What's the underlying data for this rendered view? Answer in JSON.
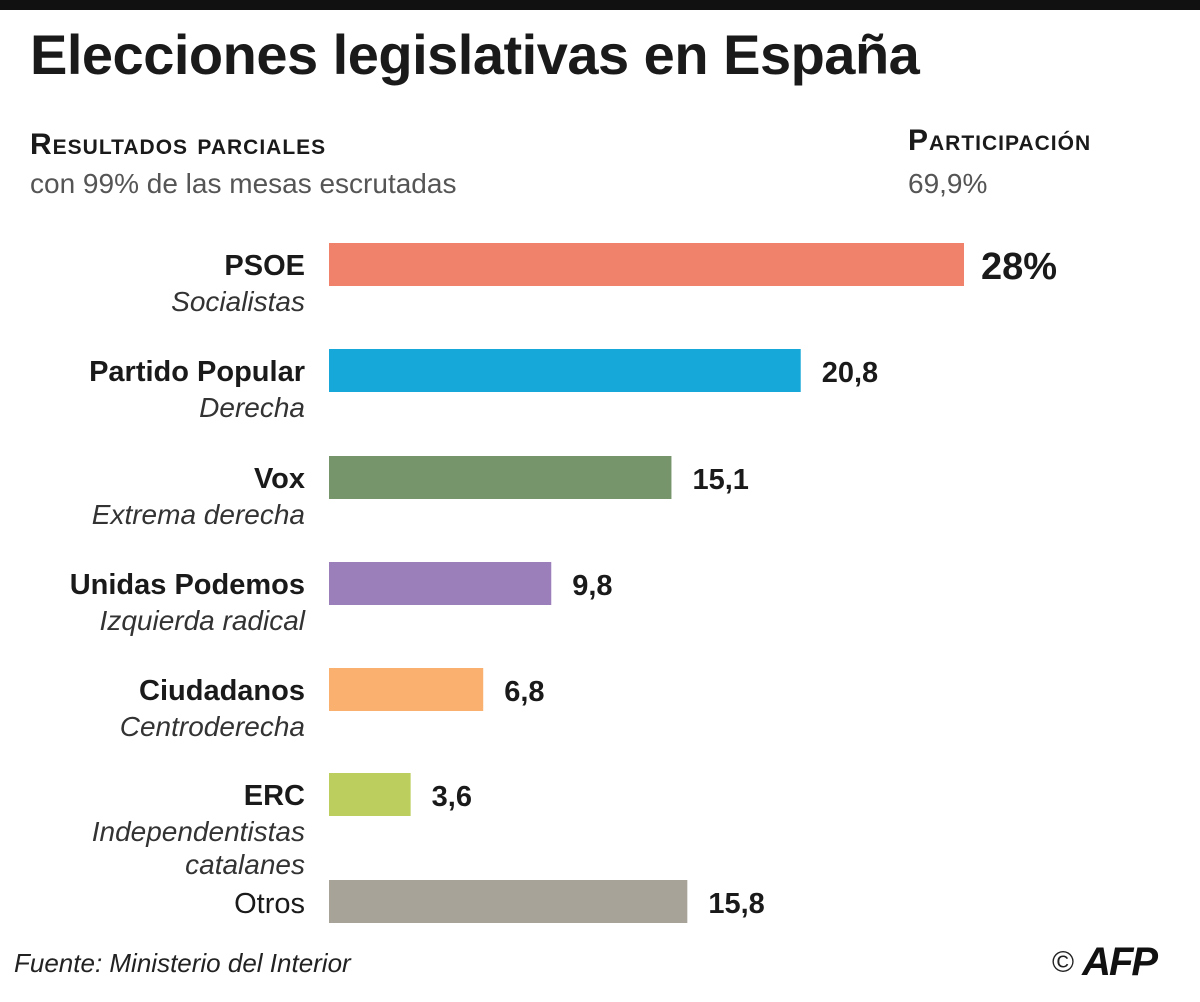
{
  "header": {
    "title": "Elecciones legislativas en España",
    "results_heading": "Resultados parciales",
    "results_note": "con 99% de las mesas escrutadas",
    "participation_heading": "Participación",
    "participation_value": "69,9%"
  },
  "chart_data": {
    "type": "bar",
    "orientation": "horizontal",
    "unit": "%",
    "categories": [
      "PSOE",
      "Partido Popular",
      "Vox",
      "Unidas Podemos",
      "Ciudadanos",
      "ERC",
      "Otros"
    ],
    "descriptions": [
      "Socialistas",
      "Derecha",
      "Extrema derecha",
      "Izquierda radical",
      "Centroderecha",
      "Independentistas catalanes",
      ""
    ],
    "values": [
      28,
      20.8,
      15.1,
      9.8,
      6.8,
      3.6,
      15.8
    ],
    "value_labels": [
      "28%",
      "20,8",
      "15,1",
      "9,8",
      "6,8",
      "3,6",
      "15,8"
    ],
    "colors": [
      "#f0826c",
      "#16a8d8",
      "#76956a",
      "#9a7fba",
      "#fab06e",
      "#bccf5e",
      "#a7a399"
    ],
    "xlim": [
      0,
      28
    ],
    "grid": false,
    "legend": "none"
  },
  "footer": {
    "source": "Fuente: Ministerio del Interior",
    "copyright": "©",
    "agency": "AFP"
  }
}
